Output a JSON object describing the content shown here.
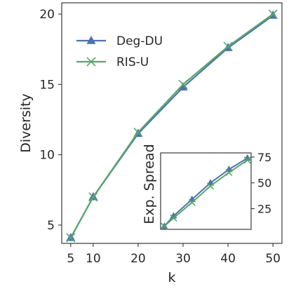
{
  "chart_data": [
    {
      "type": "line",
      "xlabel": "k",
      "ylabel": "Diversity",
      "x": [
        5,
        10,
        20,
        30,
        40,
        50
      ],
      "xticks": [
        5,
        10,
        20,
        30,
        40,
        50
      ],
      "yticks": [
        5,
        10,
        15,
        20
      ],
      "xlim": [
        3,
        52
      ],
      "ylim": [
        3.7,
        20.8
      ],
      "grid": false,
      "legend_position": "top-left",
      "series": [
        {
          "name": "Deg-DU",
          "marker": "triangle",
          "color": "#4c72b0",
          "values": [
            4.1,
            7.0,
            11.5,
            14.8,
            17.6,
            19.9
          ]
        },
        {
          "name": "RIS-U",
          "marker": "x",
          "color": "#55a868",
          "values": [
            4.1,
            7.0,
            11.6,
            15.0,
            17.7,
            20.0
          ]
        }
      ]
    },
    {
      "type": "line",
      "role": "inset",
      "xlabel": "",
      "ylabel": "Exp. Spread",
      "yticks": [
        25,
        50,
        75
      ],
      "ylim": [
        5,
        79
      ],
      "y_axis_side": "right",
      "x": [
        5,
        10,
        20,
        30,
        40,
        50
      ],
      "xlim": [
        3,
        52
      ],
      "grid": false,
      "series": [
        {
          "name": "Deg-DU",
          "marker": "triangle",
          "color": "#4c72b0",
          "values": [
            8,
            18,
            34,
            50,
            63,
            74
          ]
        },
        {
          "name": "RIS-U",
          "marker": "x",
          "color": "#55a868",
          "values": [
            8,
            16,
            31,
            47,
            60,
            72
          ]
        }
      ]
    }
  ]
}
